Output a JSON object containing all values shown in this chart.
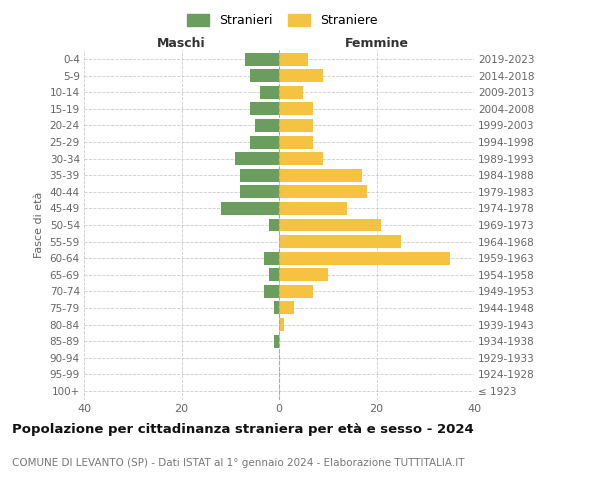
{
  "age_groups": [
    "100+",
    "95-99",
    "90-94",
    "85-89",
    "80-84",
    "75-79",
    "70-74",
    "65-69",
    "60-64",
    "55-59",
    "50-54",
    "45-49",
    "40-44",
    "35-39",
    "30-34",
    "25-29",
    "20-24",
    "15-19",
    "10-14",
    "5-9",
    "0-4"
  ],
  "birth_years": [
    "≤ 1923",
    "1924-1928",
    "1929-1933",
    "1934-1938",
    "1939-1943",
    "1944-1948",
    "1949-1953",
    "1954-1958",
    "1959-1963",
    "1964-1968",
    "1969-1973",
    "1974-1978",
    "1979-1983",
    "1984-1988",
    "1989-1993",
    "1994-1998",
    "1999-2003",
    "2004-2008",
    "2009-2013",
    "2014-2018",
    "2019-2023"
  ],
  "maschi": [
    0,
    0,
    0,
    1,
    0,
    1,
    3,
    2,
    3,
    0,
    2,
    12,
    8,
    8,
    9,
    6,
    5,
    6,
    4,
    6,
    7
  ],
  "femmine": [
    0,
    0,
    0,
    0,
    1,
    3,
    7,
    10,
    35,
    25,
    21,
    14,
    18,
    17,
    9,
    7,
    7,
    7,
    5,
    9,
    6
  ],
  "color_maschi": "#6b9e5e",
  "color_femmine": "#f5c242",
  "background_color": "#ffffff",
  "grid_color": "#cccccc",
  "title": "Popolazione per cittadinanza straniera per età e sesso - 2024",
  "subtitle": "COMUNE DI LEVANTO (SP) - Dati ISTAT al 1° gennaio 2024 - Elaborazione TUTTITALIA.IT",
  "xlabel_maschi": "Maschi",
  "xlabel_femmine": "Femmine",
  "ylabel": "Fasce di età",
  "legend_maschi": "Stranieri",
  "legend_femmine": "Straniere",
  "xlim": 40
}
